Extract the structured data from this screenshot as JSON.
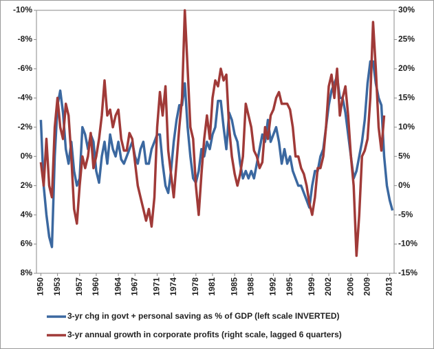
{
  "chart_data": {
    "type": "line",
    "x": [
      1950,
      1950.5,
      1951,
      1951.5,
      1952,
      1952.5,
      1953,
      1953.5,
      1954,
      1954.5,
      1955,
      1955.5,
      1956,
      1956.5,
      1957,
      1957.5,
      1958,
      1958.5,
      1959,
      1959.5,
      1960,
      1960.5,
      1961,
      1961.5,
      1962,
      1962.5,
      1963,
      1963.5,
      1964,
      1964.5,
      1965,
      1965.5,
      1966,
      1966.5,
      1967,
      1967.5,
      1968,
      1968.5,
      1969,
      1969.5,
      1970,
      1970.5,
      1971,
      1971.5,
      1972,
      1972.5,
      1973,
      1973.5,
      1974,
      1974.5,
      1975,
      1975.5,
      1976,
      1976.5,
      1977,
      1977.5,
      1978,
      1978.5,
      1979,
      1979.5,
      1980,
      1980.5,
      1981,
      1981.5,
      1982,
      1982.5,
      1983,
      1983.5,
      1984,
      1984.5,
      1985,
      1985.5,
      1986,
      1986.5,
      1987,
      1987.5,
      1988,
      1988.5,
      1989,
      1989.5,
      1990,
      1990.5,
      1991,
      1991.5,
      1992,
      1992.5,
      1993,
      1993.5,
      1994,
      1994.5,
      1995,
      1995.5,
      1996,
      1996.5,
      1997,
      1997.5,
      1998,
      1998.5,
      1999,
      1999.5,
      2000,
      2000.5,
      2001,
      2001.5,
      2002,
      2002.5,
      2003,
      2003.5,
      2004,
      2004.5,
      2005,
      2005.5,
      2006,
      2006.5,
      2007,
      2007.5,
      2008,
      2008.5,
      2009,
      2009.5,
      2010,
      2010.5,
      2011,
      2011.5,
      2012,
      2012.5,
      2013,
      2013.5
    ],
    "series": [
      {
        "name": "3-yr chg in govt + personal saving as % of GDP (left scale INVERTED)",
        "color": "#3b68a0",
        "values": [
          -2.5,
          2,
          4,
          5.5,
          6.2,
          0,
          -3.5,
          -4.5,
          -3,
          -0.5,
          0.5,
          -1,
          1,
          2,
          1.5,
          -2,
          -1.5,
          -0.5,
          -1.5,
          -1,
          1,
          1.8,
          0,
          -1,
          0.5,
          -1.5,
          -0.5,
          0,
          -1,
          0.2,
          0.5,
          0,
          -0.5,
          -1,
          0,
          0.5,
          -0.5,
          -1,
          0.5,
          0.5,
          -0.5,
          -1,
          -1.5,
          -1.5,
          0.5,
          2,
          2.5,
          1,
          -1,
          -2.5,
          -3.5,
          -3.5,
          -5,
          -2,
          0,
          1.5,
          1.8,
          1,
          -0.5,
          0,
          -1,
          -0.5,
          -1.5,
          -2,
          -3.8,
          -3.8,
          -2,
          -0.5,
          -3,
          -2.5,
          -1.5,
          -1,
          0.5,
          1.5,
          1,
          1.5,
          1,
          1.5,
          0.5,
          -0.5,
          -1.5,
          -1,
          -2.5,
          -1,
          -1.5,
          -2,
          -1,
          0.5,
          -0.5,
          0.5,
          0,
          1,
          1.5,
          2,
          2,
          2.5,
          3,
          3.5,
          2,
          1,
          1,
          0,
          -0.5,
          -2,
          -3.5,
          -4.5,
          -5,
          -5.5,
          -4,
          -4,
          -3,
          -1.5,
          0,
          1.5,
          1,
          0,
          -1,
          -2.5,
          -5,
          -6.5,
          -6.5,
          -5,
          -4,
          -3.5,
          0,
          2,
          3,
          3.7
        ]
      },
      {
        "name": "3-yr annual growth in corporate profits (right scale, lagged 6 quarters)",
        "color": "#a03a38",
        "axis": "y2",
        "values": [
          4,
          0,
          8,
          0,
          -2,
          10,
          15,
          10,
          8,
          14,
          12,
          5,
          -4,
          -6.5,
          0,
          5,
          3,
          5,
          9,
          3,
          5,
          8,
          12,
          18,
          12,
          13,
          10,
          12,
          13,
          8,
          6,
          6,
          9,
          8,
          4,
          0,
          -2,
          -4,
          -6,
          -4,
          -7,
          -2,
          10,
          16,
          12,
          17,
          6,
          2,
          -2,
          4,
          10,
          15,
          30,
          20,
          10,
          8,
          0,
          -5,
          2,
          8,
          12,
          8,
          15,
          18,
          17,
          20,
          18,
          19,
          10,
          5,
          2,
          0,
          2,
          5,
          14,
          12,
          10,
          6,
          5,
          3,
          4,
          10,
          8,
          12,
          13,
          15,
          16,
          14,
          14,
          14,
          13,
          10,
          5,
          5,
          3,
          2,
          0,
          -3,
          -5,
          -2,
          3,
          3,
          5,
          10,
          17,
          19,
          15,
          20,
          12,
          15,
          17,
          12,
          5,
          0,
          -12,
          -5,
          5,
          6,
          8,
          15,
          28,
          20,
          10,
          6,
          12,
          null,
          null,
          null
        ]
      }
    ],
    "xlim": [
      1949.2,
      2013.8
    ],
    "xticks": [
      1950,
      1953,
      1957,
      1960,
      1964,
      1967,
      1971,
      1974,
      1978,
      1981,
      1985,
      1988,
      1992,
      1995,
      1999,
      2002,
      2006,
      2009,
      2013
    ],
    "ylim": [
      -10,
      8
    ],
    "y_inverted": true,
    "yticks": [
      {
        "value": -10,
        "label": "-10%"
      },
      {
        "value": -8,
        "label": "-8%"
      },
      {
        "value": -6,
        "label": "-6%"
      },
      {
        "value": -4,
        "label": "-4%"
      },
      {
        "value": -2,
        "label": "-2%"
      },
      {
        "value": 0,
        "label": "0%"
      },
      {
        "value": 2,
        "label": "2%"
      },
      {
        "value": 4,
        "label": "4%"
      },
      {
        "value": 6,
        "label": "6%"
      },
      {
        "value": 8,
        "label": "8%"
      }
    ],
    "y2lim": [
      -15,
      30
    ],
    "y2ticks": [
      {
        "value": 30,
        "label": "30%"
      },
      {
        "value": 25,
        "label": "25%"
      },
      {
        "value": 20,
        "label": "20%"
      },
      {
        "value": 15,
        "label": "15%"
      },
      {
        "value": 10,
        "label": "10%"
      },
      {
        "value": 5,
        "label": "5%"
      },
      {
        "value": 0,
        "label": "0%"
      },
      {
        "value": -5,
        "label": "-5%"
      },
      {
        "value": -10,
        "label": "-10%"
      },
      {
        "value": -15,
        "label": "-15%"
      }
    ],
    "grid": false,
    "legend": "bottom"
  }
}
